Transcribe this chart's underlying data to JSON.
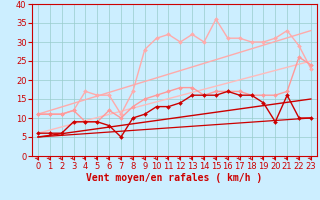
{
  "xlabel": "Vent moyen/en rafales ( km/h )",
  "xlim": [
    -0.5,
    23.5
  ],
  "ylim": [
    0,
    40
  ],
  "xticks": [
    0,
    1,
    2,
    3,
    4,
    5,
    6,
    7,
    8,
    9,
    10,
    11,
    12,
    13,
    14,
    15,
    16,
    17,
    18,
    19,
    20,
    21,
    22,
    23
  ],
  "yticks": [
    0,
    5,
    10,
    15,
    20,
    25,
    30,
    35,
    40
  ],
  "bg_color": "#cceeff",
  "grid_color": "#99cccc",
  "lines": [
    {
      "x": [
        0,
        23
      ],
      "y": [
        11,
        33
      ],
      "color": "#ffaaaa",
      "lw": 1.0,
      "marker": null,
      "ms": 0,
      "zorder": 2
    },
    {
      "x": [
        0,
        23
      ],
      "y": [
        6,
        25
      ],
      "color": "#ffbbbb",
      "lw": 1.0,
      "marker": null,
      "ms": 0,
      "zorder": 2
    },
    {
      "x": [
        0,
        23
      ],
      "y": [
        5,
        15
      ],
      "color": "#cc0000",
      "lw": 1.0,
      "marker": null,
      "ms": 0,
      "zorder": 2
    },
    {
      "x": [
        0,
        23
      ],
      "y": [
        5,
        10
      ],
      "color": "#cc0000",
      "lw": 0.9,
      "marker": null,
      "ms": 0,
      "zorder": 2
    },
    {
      "x": [
        0,
        1,
        2,
        3,
        4,
        5,
        6,
        7,
        8,
        9,
        10,
        11,
        12,
        13,
        14,
        15,
        16,
        17,
        18,
        19,
        20,
        21,
        22,
        23
      ],
      "y": [
        11,
        11,
        11,
        12,
        17,
        16,
        16,
        11,
        17,
        28,
        31,
        32,
        30,
        32,
        30,
        36,
        31,
        31,
        30,
        30,
        31,
        33,
        29,
        23
      ],
      "color": "#ffaaaa",
      "lw": 1.0,
      "marker": "D",
      "ms": 2.0,
      "zorder": 5
    },
    {
      "x": [
        0,
        1,
        2,
        3,
        4,
        5,
        6,
        7,
        8,
        9,
        10,
        11,
        12,
        13,
        14,
        15,
        16,
        17,
        18,
        19,
        20,
        21,
        22,
        23
      ],
      "y": [
        11,
        11,
        11,
        12,
        9,
        9,
        12,
        10,
        13,
        15,
        16,
        17,
        18,
        18,
        16,
        17,
        17,
        17,
        16,
        16,
        16,
        17,
        26,
        24
      ],
      "color": "#ff9999",
      "lw": 1.0,
      "marker": "D",
      "ms": 2.0,
      "zorder": 5
    },
    {
      "x": [
        0,
        1,
        2,
        3,
        4,
        5,
        6,
        7,
        8,
        9,
        10,
        11,
        12,
        13,
        14,
        15,
        16,
        17,
        18,
        19,
        20,
        21,
        22,
        23
      ],
      "y": [
        6,
        6,
        6,
        9,
        9,
        9,
        8,
        5,
        10,
        11,
        13,
        13,
        14,
        16,
        16,
        16,
        17,
        16,
        16,
        14,
        9,
        16,
        10,
        10
      ],
      "color": "#cc0000",
      "lw": 1.0,
      "marker": "D",
      "ms": 2.0,
      "zorder": 5
    }
  ],
  "xlabel_color": "#cc0000",
  "xlabel_fontsize": 7,
  "tick_color": "#cc0000",
  "tick_fontsize": 6,
  "spine_color": "#cc0000"
}
